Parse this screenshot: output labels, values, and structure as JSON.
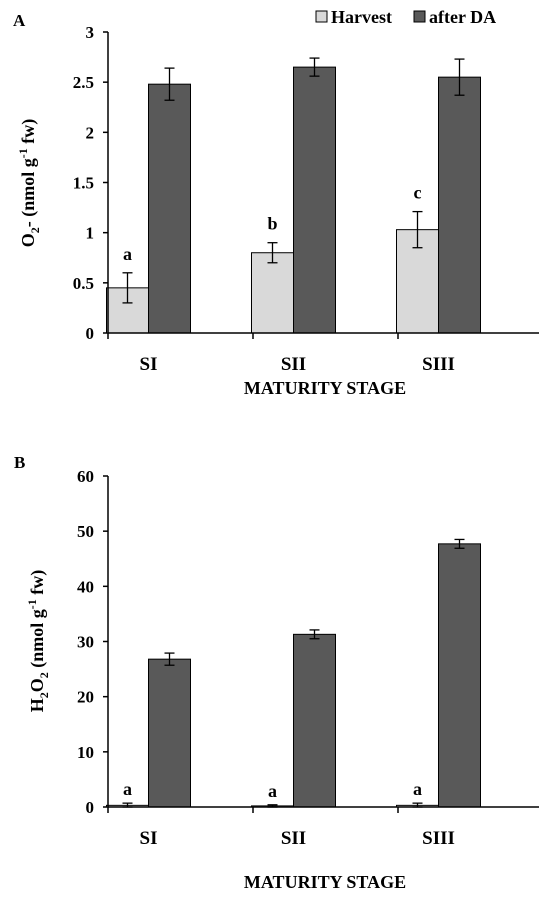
{
  "chart_data": [
    {
      "type": "bar",
      "panel_label": "A",
      "categories": [
        "SI",
        "SII",
        "SIII"
      ],
      "series": [
        {
          "name": "Harvest",
          "values": [
            0.45,
            0.8,
            1.03
          ],
          "errors": [
            0.15,
            0.1,
            0.18
          ],
          "color": "#d9d9d9"
        },
        {
          "name": "after DA",
          "values": [
            2.48,
            2.65,
            2.55
          ],
          "errors": [
            0.16,
            0.09,
            0.18
          ],
          "color": "#595959"
        }
      ],
      "annotations": [
        "a",
        "b",
        "c"
      ],
      "xlabel": "MATURITY STAGE",
      "ylabel": "O₂- (nmol g⁻¹ fw)",
      "ylim": [
        0,
        3
      ],
      "yticks": [
        "0",
        "0.5",
        "1",
        "1.5",
        "2",
        "2.5",
        "3"
      ],
      "grid": false,
      "legend": "top-right"
    },
    {
      "type": "bar",
      "panel_label": "B",
      "categories": [
        "SI",
        "SII",
        "SIII"
      ],
      "series": [
        {
          "name": "Harvest",
          "values": [
            0.3,
            0.2,
            0.3
          ],
          "errors": [
            0.4,
            0.2,
            0.4
          ],
          "color": "#d9d9d9"
        },
        {
          "name": "after DA",
          "values": [
            26.8,
            31.3,
            47.7
          ],
          "errors": [
            1.1,
            0.8,
            0.8
          ],
          "color": "#595959"
        }
      ],
      "annotations": [
        "a",
        "a",
        "a"
      ],
      "xlabel": "MATURITY STAGE",
      "ylabel": "H₂O₂ (nmol g⁻¹ fw)",
      "ylim": [
        0,
        60
      ],
      "yticks": [
        "0",
        "10",
        "20",
        "30",
        "40",
        "50",
        "60"
      ],
      "grid": false,
      "legend": "none"
    }
  ]
}
